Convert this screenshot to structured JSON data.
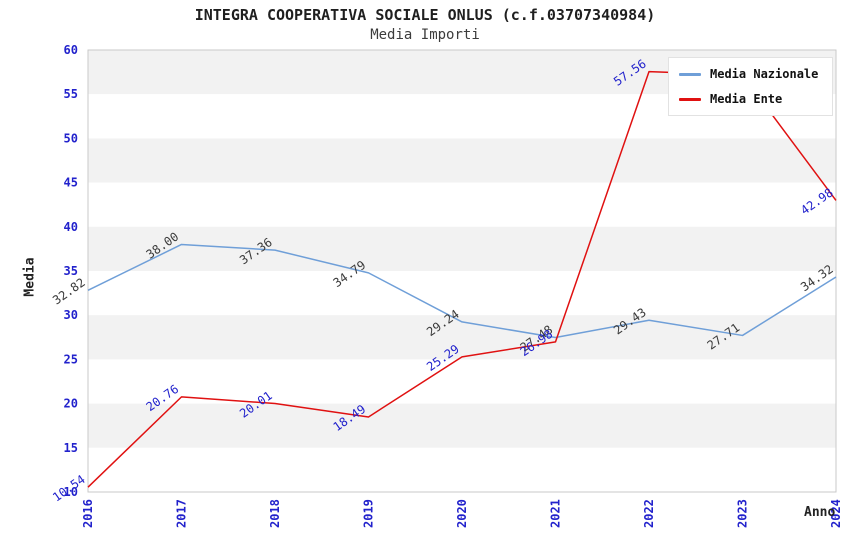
{
  "chart_data": {
    "type": "line",
    "title": "INTEGRA COOPERATIVA SOCIALE ONLUS (c.f.03707340984)",
    "subtitle": "Media Importi",
    "xlabel": "Anno",
    "ylabel": "Media",
    "x": [
      "2016",
      "2017",
      "2018",
      "2019",
      "2020",
      "2021",
      "2022",
      "2023",
      "2024"
    ],
    "ylim": [
      10,
      60
    ],
    "ytick_step": 5,
    "yticks": [
      10,
      15,
      20,
      25,
      30,
      35,
      40,
      45,
      50,
      55,
      60
    ],
    "grid": "alternating-horizontal-bands",
    "legend_position": "top-right",
    "series": [
      {
        "name": "Media Nazionale",
        "color": "#6f9fd8",
        "label_color": "#3a3a3a",
        "values": [
          32.82,
          38.0,
          37.36,
          34.79,
          29.24,
          27.48,
          29.43,
          27.71,
          34.32
        ]
      },
      {
        "name": "Media Ente",
        "color": "#e01111",
        "label_color": "#2222cc",
        "values": [
          10.54,
          20.76,
          20.01,
          18.49,
          25.29,
          26.98,
          57.56,
          57.17,
          42.98
        ]
      }
    ],
    "colors": {
      "band": "#f2f2f2",
      "band_alt": "#ffffff",
      "axis_tick": "#2222cc",
      "plot_border": "#c9c9c9"
    }
  }
}
